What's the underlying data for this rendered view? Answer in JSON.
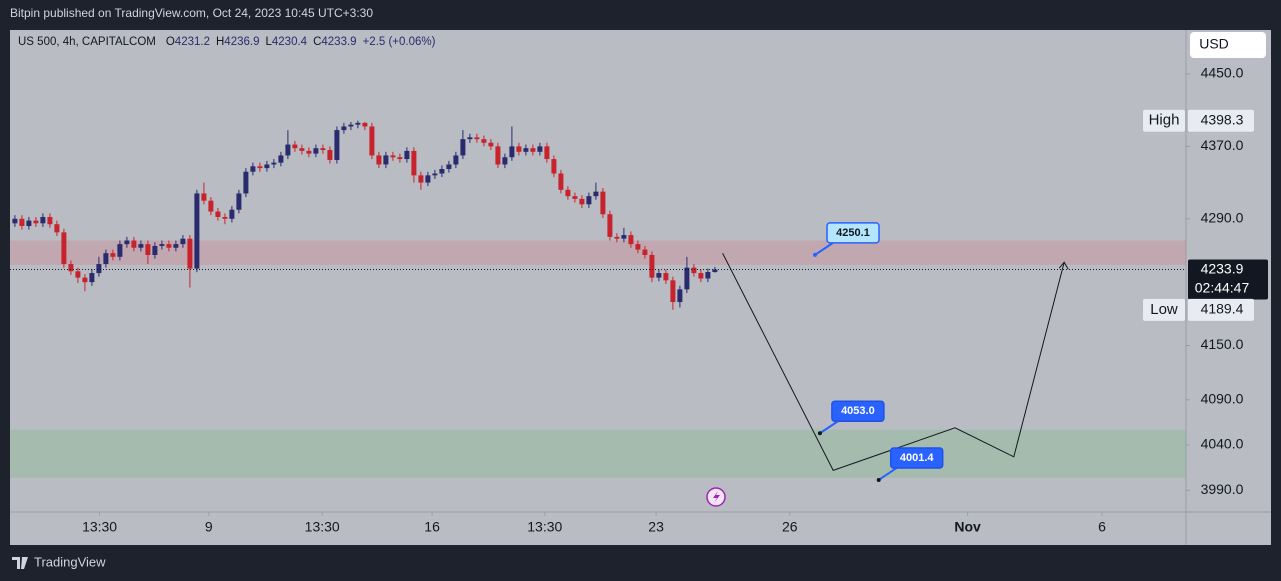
{
  "header": {
    "text": "Bitpin published on TradingView.com, Oct 24, 2023 10:45 UTC+3:30"
  },
  "footer": {
    "brand": "TradingView"
  },
  "chart_data": {
    "type": "candlestick",
    "symbol": "US 500, 4h, CAPITALCOM",
    "ohlc_legend": [
      {
        "label": "O",
        "value": 4231.2
      },
      {
        "label": "H",
        "value": 4236.9
      },
      {
        "label": "L",
        "value": 4230.4
      },
      {
        "label": "C",
        "value": 4233.9
      }
    ],
    "change": "+2.5 (+0.06%)",
    "currency": "USD",
    "up_color": "#2a2b6e",
    "down_color": "#c8232c",
    "open": [
      4285,
      4290,
      4282,
      4288,
      4285,
      4292,
      4284,
      4275,
      4240,
      4232,
      4225,
      4220,
      4230,
      4240,
      4252,
      4248,
      4262,
      4266,
      4258,
      4262,
      4250,
      4260,
      4262,
      4258,
      4262,
      4268,
      4235,
      4318,
      4310,
      4298,
      4292,
      4290,
      4300,
      4318,
      4342,
      4348,
      4346,
      4350,
      4352,
      4360,
      4372,
      4368,
      4365,
      4362,
      4368,
      4366,
      4355,
      4388,
      4392,
      4394,
      4396,
      4392,
      4360,
      4350,
      4360,
      4358,
      4356,
      4365,
      4338,
      4330,
      4338,
      4340,
      4345,
      4350,
      4360,
      4378,
      4380,
      4378,
      4374,
      4370,
      4350,
      4358,
      4370,
      4364,
      4368,
      4364,
      4370,
      4356,
      4340,
      4322,
      4315,
      4312,
      4306,
      4315,
      4320,
      4295,
      4270,
      4268,
      4272,
      4262,
      4256,
      4250,
      4225,
      4230,
      4222,
      4198,
      4212,
      4236,
      4230,
      4224,
      4231.2
    ],
    "high": [
      4294,
      4294,
      4292,
      4292,
      4296,
      4296,
      4288,
      4279,
      4244,
      4236,
      4229,
      4234,
      4248,
      4256,
      4256,
      4266,
      4270,
      4270,
      4266,
      4266,
      4264,
      4266,
      4266,
      4266,
      4272,
      4272,
      4322,
      4330,
      4314,
      4302,
      4296,
      4304,
      4322,
      4346,
      4352,
      4352,
      4354,
      4356,
      4364,
      4388,
      4376,
      4372,
      4369,
      4372,
      4372,
      4370,
      4392,
      4396,
      4397,
      4398.3,
      4397,
      4396,
      4364,
      4364,
      4364,
      4362,
      4369,
      4369,
      4342,
      4342,
      4344,
      4349,
      4354,
      4364,
      4388,
      4384,
      4384,
      4382,
      4378,
      4374,
      4362,
      4392,
      4374,
      4372,
      4372,
      4374,
      4374,
      4360,
      4344,
      4326,
      4319,
      4316,
      4319,
      4330,
      4324,
      4299,
      4274,
      4280,
      4276,
      4266,
      4260,
      4254,
      4234,
      4234,
      4226,
      4216,
      4248,
      4240,
      4234,
      4235,
      4236.9
    ],
    "low": [
      4281,
      4278,
      4278,
      4281,
      4281,
      4280,
      4271,
      4236,
      4228,
      4219,
      4210,
      4216,
      4226,
      4236,
      4244,
      4244,
      4258,
      4254,
      4254,
      4240,
      4246,
      4256,
      4254,
      4254,
      4258,
      4214,
      4231,
      4306,
      4294,
      4288,
      4284,
      4286,
      4296,
      4314,
      4338,
      4342,
      4342,
      4346,
      4348,
      4356,
      4364,
      4361,
      4358,
      4358,
      4362,
      4351,
      4351,
      4384,
      4388,
      4390,
      4388,
      4356,
      4346,
      4346,
      4354,
      4352,
      4352,
      4330,
      4322,
      4326,
      4334,
      4336,
      4341,
      4346,
      4356,
      4374,
      4374,
      4370,
      4366,
      4346,
      4346,
      4354,
      4360,
      4360,
      4360,
      4360,
      4352,
      4336,
      4318,
      4311,
      4308,
      4302,
      4302,
      4311,
      4291,
      4266,
      4264,
      4264,
      4258,
      4252,
      4246,
      4220,
      4221,
      4218,
      4189.4,
      4192,
      4208,
      4226,
      4220,
      4220,
      4230.4
    ],
    "close": [
      4290,
      4282,
      4288,
      4285,
      4292,
      4284,
      4275,
      4240,
      4232,
      4225,
      4220,
      4230,
      4240,
      4252,
      4248,
      4262,
      4266,
      4258,
      4262,
      4250,
      4260,
      4262,
      4258,
      4262,
      4268,
      4235,
      4318,
      4310,
      4298,
      4292,
      4290,
      4300,
      4318,
      4342,
      4348,
      4346,
      4350,
      4352,
      4360,
      4372,
      4368,
      4365,
      4362,
      4368,
      4366,
      4355,
      4388,
      4392,
      4394,
      4396,
      4392,
      4360,
      4350,
      4360,
      4358,
      4356,
      4365,
      4338,
      4330,
      4338,
      4340,
      4345,
      4350,
      4360,
      4378,
      4380,
      4378,
      4374,
      4370,
      4350,
      4358,
      4370,
      4364,
      4368,
      4364,
      4370,
      4356,
      4340,
      4322,
      4315,
      4312,
      4306,
      4315,
      4320,
      4295,
      4270,
      4268,
      4272,
      4262,
      4256,
      4250,
      4225,
      4230,
      4222,
      4198,
      4212,
      4236,
      4230,
      4224,
      4231.2,
      4233.9
    ],
    "xlim": [
      -0.7,
      167.3
    ],
    "xticks": [
      {
        "value": 12.1,
        "label": "13:30"
      },
      {
        "value": 27.7,
        "label": "9"
      },
      {
        "value": 43.9,
        "label": "13:30"
      },
      {
        "value": 59.6,
        "label": "16"
      },
      {
        "value": 75.7,
        "label": "13:30"
      },
      {
        "value": 91.6,
        "label": "23"
      },
      {
        "value": 110.7,
        "label": "26"
      },
      {
        "value": 136.1,
        "label": "Nov"
      },
      {
        "value": 155.3,
        "label": "6"
      }
    ],
    "ylim": [
      3966,
      4498.6
    ],
    "yticks": [
      {
        "value": 4450,
        "label": "4450.0"
      },
      {
        "value": 4370,
        "label": "4370.0"
      },
      {
        "value": 4290,
        "label": "4290.0"
      },
      {
        "value": 4150,
        "label": "4150.0"
      },
      {
        "value": 4090,
        "label": "4090.0"
      },
      {
        "value": 4040,
        "label": "4040.0"
      },
      {
        "value": 3990,
        "label": "3990.0"
      }
    ],
    "range_high": {
      "label": "High",
      "value": 4398.3,
      "value_label": "4398.3"
    },
    "range_low": {
      "label": "Low",
      "value": 4189.4,
      "value_label": "4189.4"
    },
    "last_price": {
      "value": 4233.9,
      "value_label": "4233.9",
      "countdown": "02:44:47"
    },
    "zones": [
      {
        "from": 4239,
        "to": 4266,
        "color": "rgba(232,80,96,0.18)"
      },
      {
        "from": 4004,
        "to": 4057,
        "color": "rgba(90,185,95,0.22)"
      }
    ],
    "projection": {
      "x": [
        101.1,
        116.9,
        134.3,
        142.7,
        149.9
      ],
      "values": [
        4252,
        4012,
        4059,
        4027,
        4242
      ]
    },
    "annotations": [
      {
        "x": 114.3,
        "value": 4250.1,
        "label": "4250.1",
        "style": "light"
      },
      {
        "x": 115,
        "value": 4053.0,
        "label": "4053.0",
        "style": "dark"
      },
      {
        "x": 123.4,
        "value": 4001.4,
        "label": "4001.4",
        "style": "dark"
      }
    ]
  }
}
